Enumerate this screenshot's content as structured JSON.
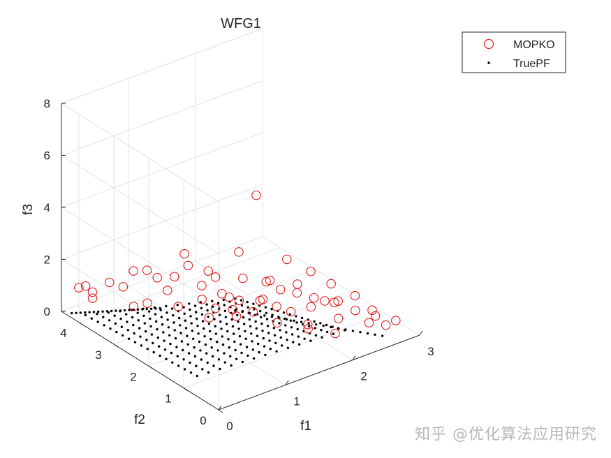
{
  "watermark": "知乎 @优化算法应用研究",
  "chart_data": {
    "type": "scatter",
    "projection": "3d",
    "title": "WFG1",
    "xlabel": "f1",
    "ylabel": "f2",
    "zlabel": "f3",
    "xlim": [
      0,
      3
    ],
    "ylim": [
      0,
      4.5
    ],
    "zlim": [
      0,
      8
    ],
    "xticks": [
      0,
      1,
      2,
      3
    ],
    "yticks": [
      0,
      1,
      2,
      3,
      4
    ],
    "zticks": [
      0,
      2,
      4,
      6,
      8
    ],
    "grid": true,
    "legend_position": "top-right",
    "series": [
      {
        "name": "MOPKO",
        "marker": "open-circle",
        "color": "#e31a1c",
        "points": [
          [
            0.05,
            4.1,
            1.2
          ],
          [
            0.1,
            4.0,
            1.3
          ],
          [
            0.15,
            3.9,
            1.1
          ],
          [
            0.1,
            3.8,
            1.0
          ],
          [
            0.3,
            3.7,
            1.5
          ],
          [
            0.4,
            3.5,
            1.4
          ],
          [
            0.5,
            3.4,
            2.0
          ],
          [
            0.6,
            3.2,
            2.1
          ],
          [
            0.4,
            3.2,
            0.9
          ],
          [
            0.5,
            3.0,
            1.1
          ],
          [
            0.7,
            3.1,
            1.8
          ],
          [
            0.8,
            2.8,
            2.0
          ],
          [
            0.9,
            2.6,
            2.5
          ],
          [
            0.7,
            2.5,
            1.2
          ],
          [
            1.0,
            2.4,
            1.8
          ],
          [
            1.1,
            2.2,
            2.2
          ],
          [
            0.9,
            2.0,
            1.0
          ],
          [
            1.2,
            2.0,
            1.5
          ],
          [
            1.3,
            1.8,
            2.3
          ],
          [
            1.1,
            1.6,
            1.2
          ],
          [
            1.4,
            1.5,
            1.6
          ],
          [
            1.5,
            1.8,
            5.3
          ],
          [
            1.6,
            1.3,
            2.0
          ],
          [
            1.7,
            1.6,
            1.0
          ],
          [
            1.8,
            1.2,
            2.1
          ],
          [
            1.6,
            1.0,
            1.4
          ],
          [
            1.9,
            1.0,
            1.3
          ],
          [
            2.0,
            0.8,
            1.6
          ],
          [
            1.7,
            0.7,
            0.9
          ],
          [
            2.1,
            0.6,
            1.0
          ],
          [
            2.2,
            0.8,
            1.4
          ],
          [
            2.3,
            0.5,
            1.2
          ],
          [
            2.4,
            0.3,
            0.8
          ],
          [
            2.5,
            0.4,
            1.1
          ],
          [
            2.6,
            0.2,
            0.6
          ],
          [
            2.0,
            1.2,
            2.4
          ],
          [
            1.8,
            1.5,
            2.8
          ],
          [
            1.5,
            2.3,
            2.7
          ],
          [
            1.2,
            2.6,
            2.0
          ],
          [
            1.0,
            2.9,
            2.6
          ],
          [
            0.8,
            3.0,
            1.3
          ],
          [
            1.4,
            2.1,
            1.1
          ],
          [
            1.6,
            1.8,
            1.2
          ],
          [
            1.9,
            1.4,
            1.5
          ],
          [
            2.2,
            1.0,
            1.9
          ],
          [
            2.4,
            0.7,
            1.5
          ],
          [
            2.6,
            0.5,
            0.7
          ],
          [
            2.8,
            0.3,
            0.5
          ],
          [
            1.3,
            2.4,
            1.2
          ],
          [
            1.1,
            2.2,
            1.0
          ],
          [
            0.95,
            2.3,
            1.4
          ],
          [
            1.7,
            1.9,
            1.7
          ],
          [
            2.1,
            1.3,
            1.2
          ],
          [
            2.3,
            1.1,
            1.0
          ],
          [
            1.5,
            1.2,
            0.9
          ],
          [
            1.8,
            0.9,
            0.8
          ],
          [
            2.0,
            0.5,
            0.6
          ],
          [
            1.4,
            1.7,
            1.0
          ],
          [
            1.2,
            1.9,
            1.1
          ],
          [
            1.6,
            1.6,
            2.1
          ]
        ]
      },
      {
        "name": "TruePF",
        "marker": "dot",
        "color": "#000000",
        "points": []
      }
    ]
  }
}
